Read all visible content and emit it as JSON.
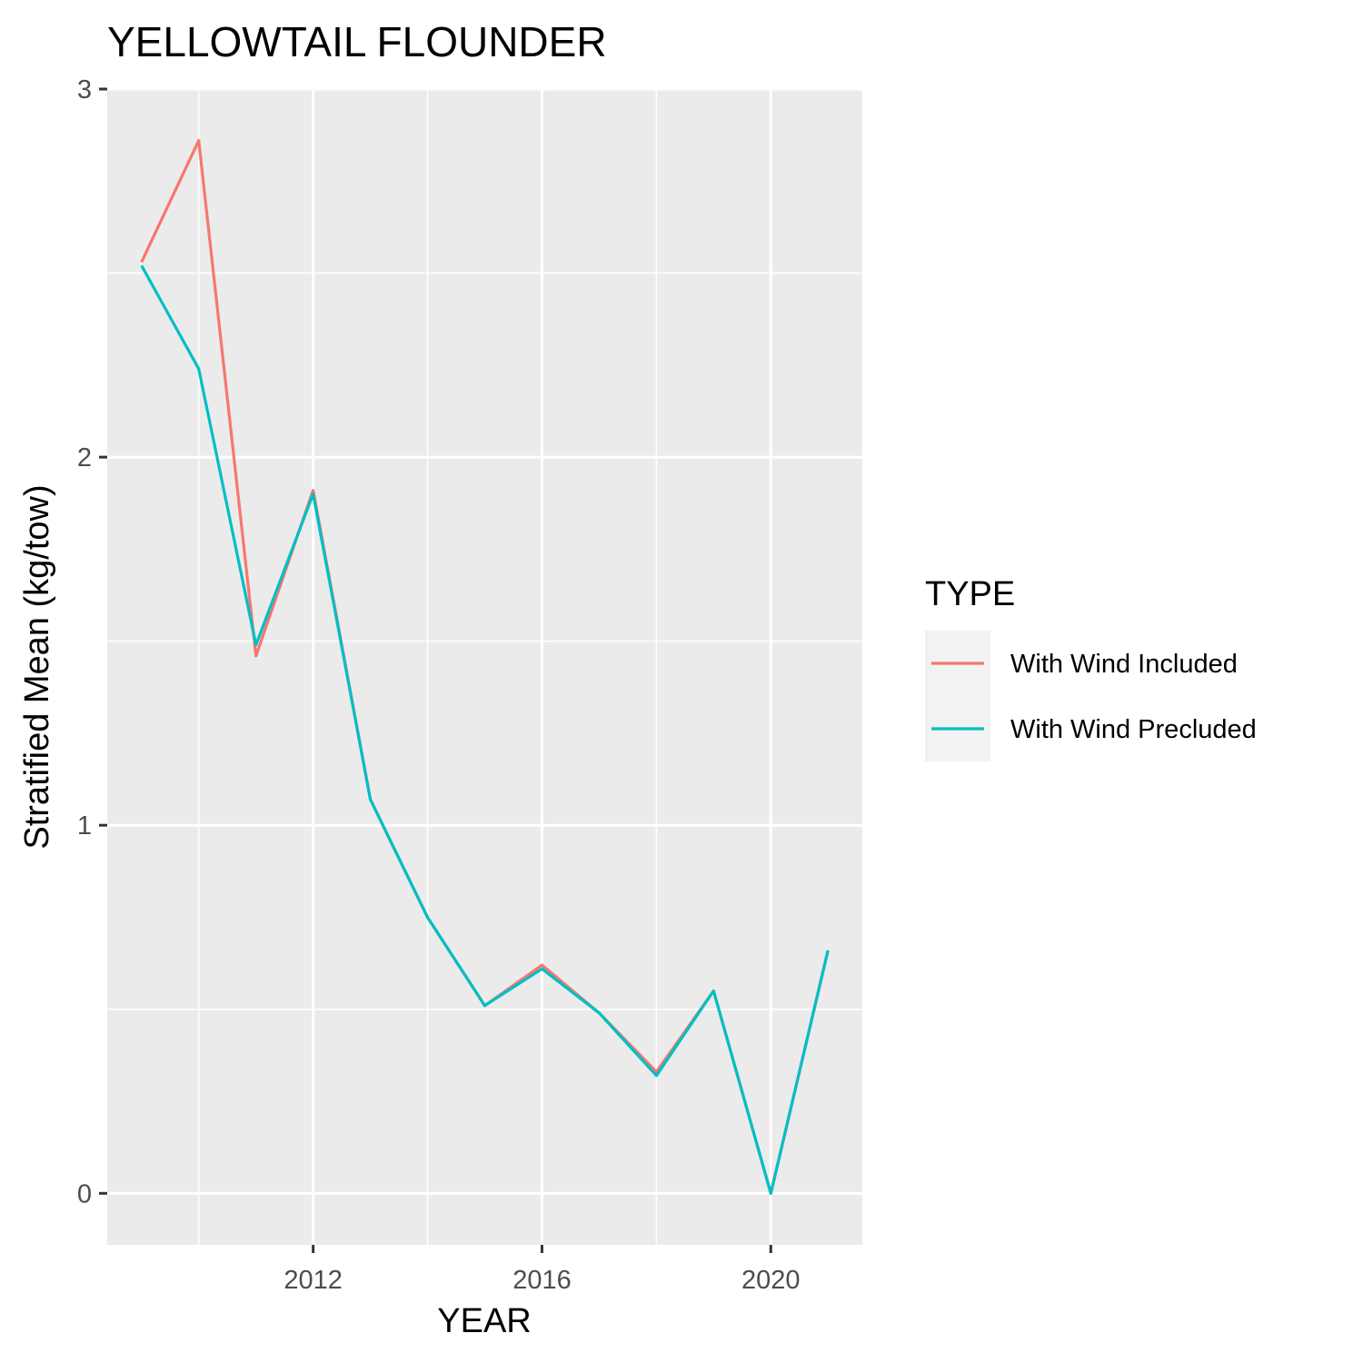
{
  "chart_data": {
    "type": "line",
    "title": "YELLOWTAIL FLOUNDER",
    "xlabel": "YEAR",
    "ylabel": "Stratified Mean (kg/tow)",
    "xlim": [
      2008.4,
      2021.6
    ],
    "ylim": [
      -0.14,
      3.0
    ],
    "x_ticks": [
      2012,
      2016,
      2020
    ],
    "x_tick_labels": [
      "2012",
      "2016",
      "2020"
    ],
    "y_ticks": [
      0,
      1,
      2,
      3
    ],
    "y_tick_labels": [
      "0",
      "1",
      "2",
      "3"
    ],
    "grid": true,
    "legend": {
      "title": "TYPE",
      "position": "right"
    },
    "x": [
      2009,
      2010,
      2011,
      2012,
      2013,
      2014,
      2015,
      2016,
      2017,
      2018,
      2019,
      2020,
      2021
    ],
    "series": [
      {
        "name": "With Wind Included",
        "color": "#F8766D",
        "values": [
          2.53,
          2.86,
          1.46,
          1.91,
          1.07,
          0.75,
          0.51,
          0.62,
          0.49,
          0.33,
          0.55,
          0.0,
          0.66
        ]
      },
      {
        "name": "With Wind Precluded",
        "color": "#00BFC4",
        "values": [
          2.52,
          2.24,
          1.49,
          1.9,
          1.07,
          0.75,
          0.51,
          0.61,
          0.49,
          0.32,
          0.55,
          0.0,
          0.66
        ]
      }
    ]
  },
  "colors": {
    "panel_background": "#EBEBEB",
    "grid": "#FFFFFF",
    "legend_key_background": "#F2F2F2",
    "tick": "#333333"
  }
}
